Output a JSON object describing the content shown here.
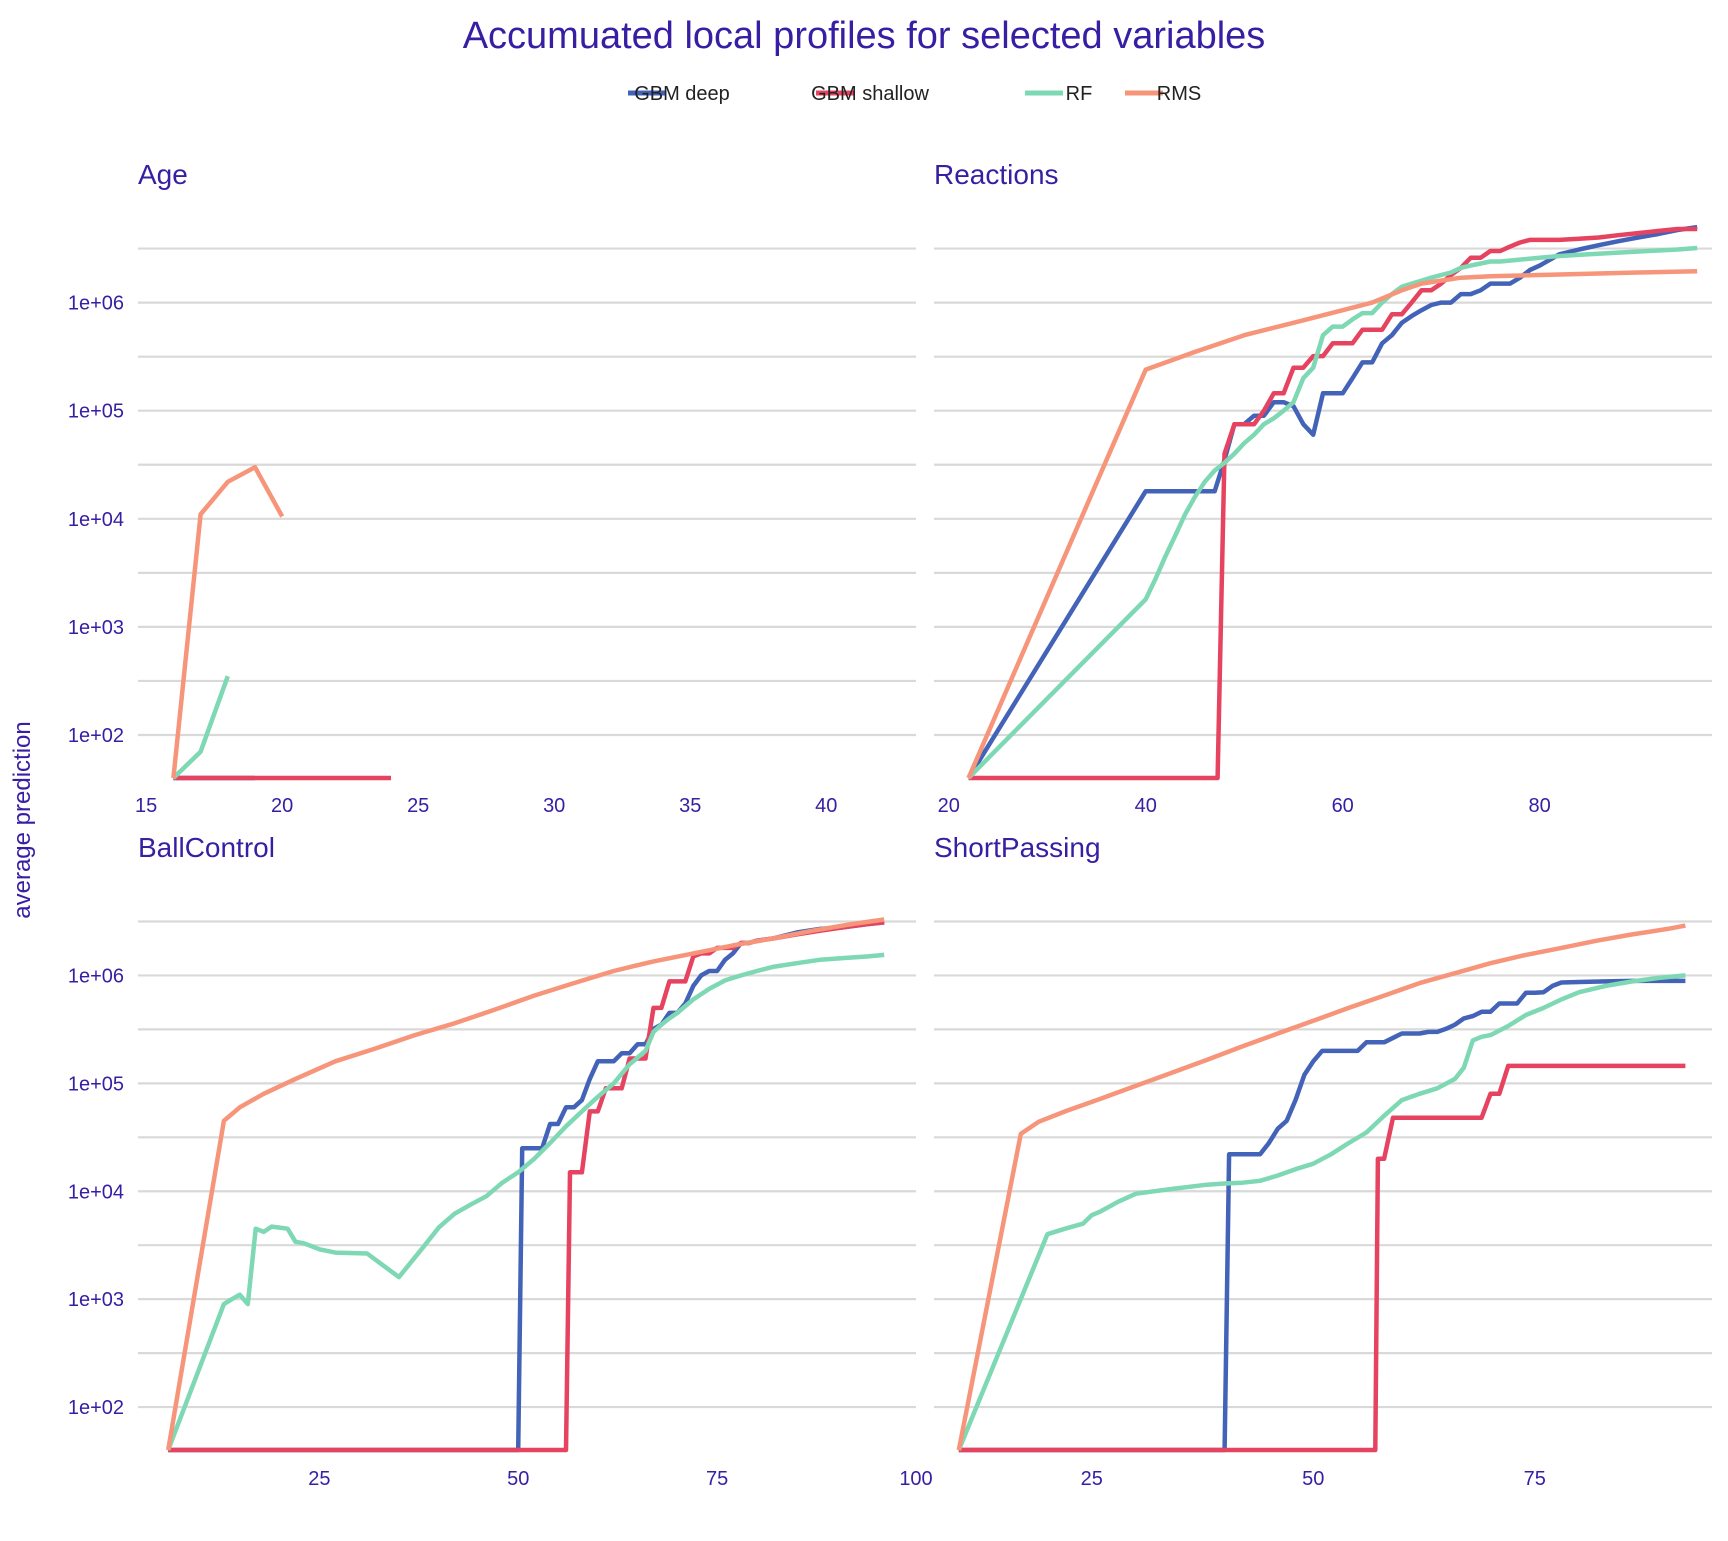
{
  "title": "Accumuated local profiles for selected variables",
  "y_axis_label": "average prediction",
  "colors": {
    "text": "#371ea3",
    "grid": "#d9d9d9"
  },
  "legend": [
    {
      "name": "GBM deep",
      "color": "#4363b8"
    },
    {
      "name": "GBM shallow",
      "color": "#e64360"
    },
    {
      "name": "RF",
      "color": "#7ed8b4"
    },
    {
      "name": "RMS",
      "color": "#f7957a"
    }
  ],
  "chart_data": [
    {
      "type": "line",
      "title": "Age",
      "y_scale": "log",
      "ylim": [
        40,
        8000000
      ],
      "yticks": [
        "1e+02",
        "1e+03",
        "1e+04",
        "1e+05",
        "1e+06"
      ],
      "ytick_values": [
        100,
        1000,
        10000,
        100000,
        1000000
      ],
      "xlim": [
        14.7,
        43.3
      ],
      "xticks": [
        15,
        20,
        25,
        30,
        35,
        40
      ],
      "series": [
        {
          "name": "GBM deep",
          "x": [
            16,
            19
          ],
          "y": [
            40,
            40
          ]
        },
        {
          "name": "GBM shallow",
          "x": [
            16,
            24
          ],
          "y": [
            40,
            40
          ]
        },
        {
          "name": "RF",
          "x": [
            16,
            17,
            18
          ],
          "y": [
            40,
            70,
            350
          ]
        },
        {
          "name": "RMS",
          "x": [
            16,
            17,
            18,
            19,
            20
          ],
          "y": [
            40,
            11000,
            22000,
            30000,
            10500
          ]
        }
      ]
    },
    {
      "type": "line",
      "title": "Reactions",
      "y_scale": "log",
      "ylim": [
        40,
        8000000
      ],
      "yticks": [
        "1e+02",
        "1e+03",
        "1e+04",
        "1e+05",
        "1e+06"
      ],
      "ytick_values": [
        100,
        1000,
        10000,
        100000,
        1000000
      ],
      "xlim": [
        18.5,
        97.5
      ],
      "xticks": [
        20,
        40,
        60,
        80
      ],
      "series": [
        {
          "name": "GBM deep",
          "x": [
            22,
            40,
            47,
            48,
            49,
            50,
            51,
            52,
            53,
            54,
            55,
            56,
            57,
            58,
            59,
            60,
            61,
            62,
            63,
            64,
            65,
            66,
            67,
            68,
            69,
            70,
            71,
            72,
            73,
            74,
            75,
            76,
            77,
            78,
            79,
            80,
            82,
            84,
            86,
            88,
            90,
            92,
            94,
            96
          ],
          "y": [
            40,
            18000,
            18000,
            35000,
            75000,
            75000,
            90000,
            90000,
            120000,
            120000,
            110000,
            75000,
            60000,
            145000,
            145000,
            145000,
            200000,
            280000,
            280000,
            420000,
            500000,
            650000,
            750000,
            850000,
            950000,
            1000000,
            1000000,
            1200000,
            1200000,
            1300000,
            1500000,
            1500000,
            1500000,
            1700000,
            2000000,
            2200000,
            2800000,
            3100000,
            3400000,
            3700000,
            4000000,
            4300000,
            4700000,
            5000000
          ]
        },
        {
          "name": "GBM shallow",
          "x": [
            22,
            47,
            47.3,
            48,
            49,
            50,
            51,
            52,
            53,
            54,
            55,
            56,
            57,
            58,
            59,
            60,
            61,
            62,
            63,
            64,
            65,
            66,
            67,
            68,
            69,
            70,
            71,
            72,
            73,
            74,
            75,
            76,
            77,
            78,
            79,
            80,
            82,
            84,
            86,
            88,
            90,
            92,
            94,
            96
          ],
          "y": [
            40,
            40,
            40,
            40000,
            75000,
            75000,
            75000,
            100000,
            145000,
            145000,
            250000,
            250000,
            320000,
            320000,
            420000,
            420000,
            420000,
            560000,
            560000,
            560000,
            780000,
            780000,
            1000000,
            1300000,
            1300000,
            1500000,
            1800000,
            2100000,
            2600000,
            2600000,
            3000000,
            3000000,
            3300000,
            3600000,
            3800000,
            3800000,
            3800000,
            3900000,
            4000000,
            4200000,
            4400000,
            4600000,
            4800000,
            4800000
          ]
        },
        {
          "name": "RF",
          "x": [
            22,
            40,
            41,
            42,
            43,
            44,
            45,
            46,
            47,
            48,
            49,
            50,
            51,
            52,
            53,
            54,
            55,
            56,
            57,
            58,
            59,
            60,
            61,
            62,
            63,
            64,
            65,
            66,
            67,
            68,
            69,
            70,
            71,
            72,
            73,
            74,
            75,
            76,
            78,
            80,
            82,
            85,
            88,
            91,
            94,
            96
          ],
          "y": [
            40,
            1800,
            2800,
            4500,
            7000,
            11000,
            16000,
            22000,
            28000,
            33000,
            40000,
            50000,
            60000,
            75000,
            85000,
            100000,
            120000,
            200000,
            250000,
            500000,
            600000,
            600000,
            700000,
            800000,
            800000,
            1000000,
            1200000,
            1400000,
            1500000,
            1600000,
            1700000,
            1800000,
            1900000,
            2100000,
            2200000,
            2300000,
            2400000,
            2400000,
            2500000,
            2600000,
            2700000,
            2800000,
            2900000,
            3000000,
            3100000,
            3200000
          ]
        },
        {
          "name": "RMS",
          "x": [
            22,
            40,
            45,
            50,
            55,
            60,
            63,
            66,
            68,
            70,
            72,
            75,
            80,
            85,
            90,
            96
          ],
          "y": [
            40,
            240000,
            350000,
            500000,
            650000,
            850000,
            1000000,
            1300000,
            1500000,
            1600000,
            1700000,
            1750000,
            1800000,
            1850000,
            1900000,
            1950000
          ]
        }
      ]
    },
    {
      "type": "line",
      "title": "BallControl",
      "y_scale": "log",
      "ylim": [
        40,
        8000000
      ],
      "yticks": [
        "1e+02",
        "1e+03",
        "1e+04",
        "1e+05",
        "1e+06"
      ],
      "ytick_values": [
        100,
        1000,
        10000,
        100000,
        1000000
      ],
      "xlim": [
        2.2,
        100
      ],
      "xticks": [
        25,
        50,
        75,
        100
      ],
      "series": [
        {
          "name": "GBM deep",
          "x": [
            6,
            50,
            50.5,
            51,
            53,
            54,
            55,
            56,
            57,
            58,
            59,
            60,
            62,
            63,
            64,
            65,
            66,
            67,
            68,
            69,
            70,
            71,
            72,
            73,
            74,
            75,
            76,
            77,
            78,
            79,
            80,
            82,
            85,
            88,
            91,
            94,
            96
          ],
          "y": [
            40,
            40,
            25000,
            25000,
            25000,
            42000,
            42000,
            60000,
            60000,
            70000,
            110000,
            160000,
            160000,
            190000,
            190000,
            230000,
            230000,
            320000,
            350000,
            450000,
            450000,
            550000,
            800000,
            1000000,
            1100000,
            1100000,
            1400000,
            1600000,
            2000000,
            2000000,
            2100000,
            2200000,
            2500000,
            2700000,
            2800000,
            3000000,
            3100000
          ]
        },
        {
          "name": "GBM shallow",
          "x": [
            6,
            56,
            56.5,
            57,
            58,
            59,
            60,
            61,
            62,
            63,
            64,
            65,
            66,
            67,
            68,
            69,
            70,
            71,
            72,
            73,
            74,
            75,
            76,
            77,
            78,
            79,
            80,
            82,
            85,
            88,
            91,
            94,
            96
          ],
          "y": [
            40,
            40,
            15000,
            15000,
            15000,
            55000,
            55000,
            90000,
            90000,
            90000,
            170000,
            170000,
            170000,
            500000,
            500000,
            880000,
            880000,
            880000,
            1500000,
            1600000,
            1600000,
            1800000,
            1800000,
            1800000,
            2000000,
            2000000,
            2100000,
            2200000,
            2400000,
            2600000,
            2800000,
            3000000,
            3100000
          ]
        },
        {
          "name": "RF",
          "x": [
            6,
            13,
            14,
            15,
            16,
            17,
            18,
            19,
            20,
            21,
            22,
            23,
            24,
            25,
            27,
            31,
            35,
            38,
            40,
            42,
            44,
            46,
            48,
            50,
            52,
            54,
            56,
            58,
            60,
            62,
            64,
            66,
            67,
            68,
            69,
            70,
            72,
            74,
            76,
            78,
            80,
            82,
            85,
            88,
            91,
            94,
            96
          ],
          "y": [
            40,
            900,
            1000,
            1100,
            900,
            4500,
            4200,
            4700,
            4600,
            4500,
            3400,
            3300,
            3100,
            2900,
            2700,
            2650,
            1600,
            3000,
            4600,
            6200,
            7500,
            9000,
            12000,
            15000,
            20000,
            28000,
            40000,
            55000,
            75000,
            100000,
            150000,
            200000,
            300000,
            350000,
            400000,
            450000,
            600000,
            750000,
            900000,
            1000000,
            1100000,
            1200000,
            1300000,
            1400000,
            1450000,
            1500000,
            1550000
          ]
        },
        {
          "name": "RMS",
          "x": [
            6,
            13,
            15,
            18,
            22,
            27,
            32,
            37,
            42,
            47,
            52,
            57,
            62,
            67,
            72,
            77,
            82,
            87,
            92,
            96
          ],
          "y": [
            40,
            45000,
            60000,
            80000,
            110000,
            160000,
            210000,
            280000,
            360000,
            480000,
            650000,
            850000,
            1100000,
            1350000,
            1600000,
            1900000,
            2200000,
            2600000,
            3000000,
            3300000
          ]
        }
      ]
    },
    {
      "type": "line",
      "title": "ShortPassing",
      "y_scale": "log",
      "ylim": [
        40,
        8000000
      ],
      "yticks": [
        "1e+02",
        "1e+03",
        "1e+04",
        "1e+05",
        "1e+06"
      ],
      "ytick_values": [
        100,
        1000,
        10000,
        100000,
        1000000
      ],
      "xlim": [
        7.2,
        95
      ],
      "xticks": [
        25,
        50,
        75
      ],
      "series": [
        {
          "name": "GBM deep",
          "x": [
            10,
            40,
            40.5,
            41,
            44,
            45,
            46,
            47,
            48,
            49,
            50,
            51,
            52,
            54,
            55,
            56,
            57,
            58,
            60,
            61,
            62,
            63,
            64,
            65,
            66,
            67,
            68,
            69,
            70,
            71,
            72,
            73,
            74,
            75,
            76,
            77,
            78,
            80,
            83,
            86,
            89,
            92
          ],
          "y": [
            40,
            40,
            22000,
            22000,
            22000,
            28000,
            38000,
            45000,
            70000,
            120000,
            160000,
            200000,
            200000,
            200000,
            200000,
            240000,
            240000,
            240000,
            290000,
            290000,
            290000,
            300000,
            300000,
            320000,
            350000,
            400000,
            420000,
            460000,
            460000,
            550000,
            550000,
            550000,
            690000,
            690000,
            700000,
            800000,
            860000,
            870000,
            880000,
            890000,
            890000,
            890000
          ]
        },
        {
          "name": "GBM shallow",
          "x": [
            10,
            57,
            57.3,
            58,
            59,
            60,
            62,
            64,
            66,
            68,
            69,
            70,
            71,
            72,
            73,
            74,
            75,
            80,
            85,
            90,
            92
          ],
          "y": [
            40,
            40,
            20000,
            20000,
            48000,
            48000,
            48000,
            48000,
            48000,
            48000,
            48000,
            80000,
            80000,
            145000,
            145000,
            145000,
            145000,
            145000,
            145000,
            145000,
            145000
          ]
        },
        {
          "name": "RF",
          "x": [
            10,
            20,
            22,
            24,
            25,
            26,
            28,
            30,
            32,
            34,
            36,
            38,
            40,
            42,
            44,
            46,
            48,
            50,
            52,
            54,
            56,
            58,
            60,
            62,
            64,
            66,
            67,
            68,
            69,
            70,
            72,
            74,
            76,
            78,
            80,
            83,
            86,
            89,
            92
          ],
          "y": [
            40,
            4000,
            4500,
            5000,
            6000,
            6500,
            8000,
            9500,
            10000,
            10500,
            11000,
            11500,
            11800,
            12000,
            12500,
            14000,
            16000,
            18000,
            22000,
            28000,
            35000,
            50000,
            70000,
            80000,
            90000,
            110000,
            140000,
            250000,
            270000,
            280000,
            340000,
            430000,
            500000,
            600000,
            700000,
            800000,
            880000,
            950000,
            1000000
          ]
        },
        {
          "name": "RMS",
          "x": [
            10,
            17,
            19,
            22,
            26,
            30,
            34,
            38,
            42,
            46,
            50,
            54,
            58,
            62,
            66,
            70,
            74,
            78,
            82,
            86,
            90,
            92
          ],
          "y": [
            40,
            34000,
            44000,
            55000,
            72000,
            95000,
            125000,
            165000,
            220000,
            290000,
            380000,
            500000,
            650000,
            850000,
            1050000,
            1300000,
            1550000,
            1800000,
            2100000,
            2400000,
            2700000,
            2900000
          ]
        }
      ]
    }
  ]
}
